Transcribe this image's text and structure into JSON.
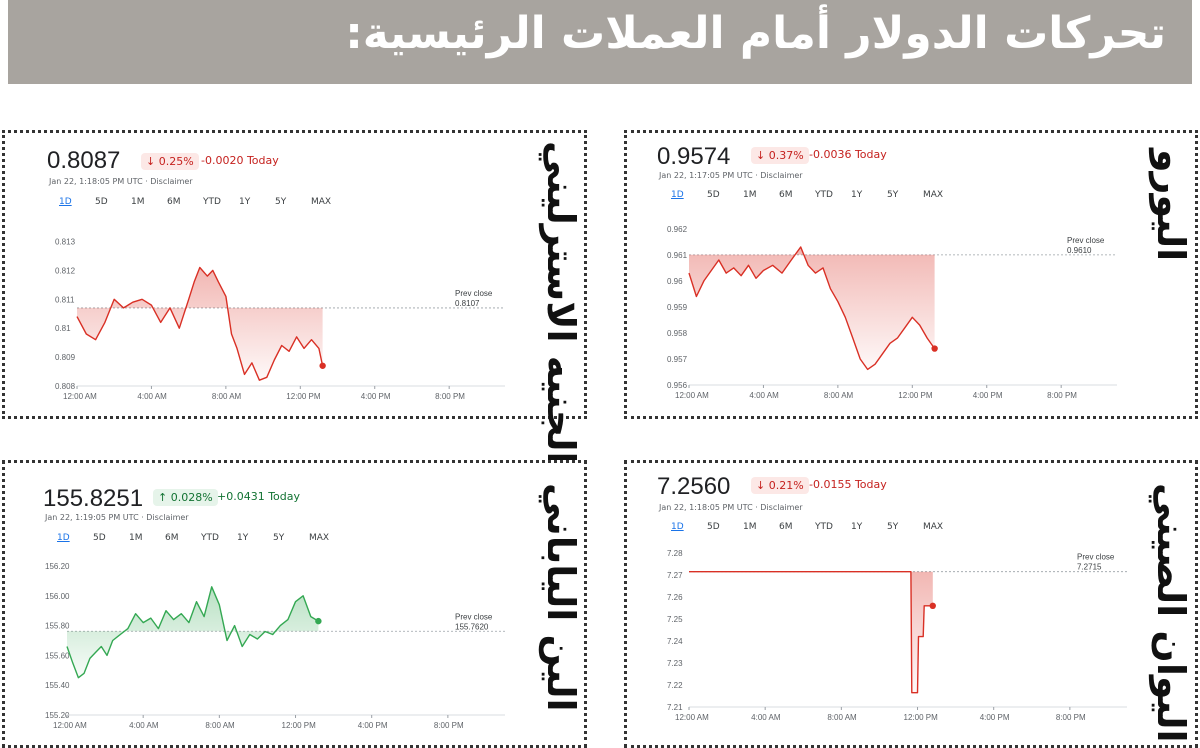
{
  "title": "تحركات الدولار أمام العملات الرئيسية:",
  "panels": [
    {
      "id": "gbp",
      "name": "الجنيه الاسترليني",
      "price": "0.8087",
      "change_pct": "↓ 0.25%",
      "change_abs": "-0.0020 Today",
      "direction": "down",
      "timestamp": "Jan 22, 1:18:05 PM UTC · Disclaimer",
      "ranges": [
        "1D",
        "5D",
        "1M",
        "6M",
        "YTD",
        "1Y",
        "5Y",
        "MAX"
      ],
      "active_range": "1D"
    },
    {
      "id": "eur",
      "name": "اليورو",
      "price": "0.9574",
      "change_pct": "↓ 0.37%",
      "change_abs": "-0.0036 Today",
      "direction": "down",
      "timestamp": "Jan 22, 1:17:05 PM UTC · Disclaimer",
      "ranges": [
        "1D",
        "5D",
        "1M",
        "6M",
        "YTD",
        "1Y",
        "5Y",
        "MAX"
      ],
      "active_range": "1D"
    },
    {
      "id": "jpy",
      "name": "الين الياباني",
      "price": "155.8251",
      "change_pct": "↑ 0.028%",
      "change_abs": "+0.0431 Today",
      "direction": "up",
      "timestamp": "Jan 22, 1:19:05 PM UTC · Disclaimer",
      "ranges": [
        "1D",
        "5D",
        "1M",
        "6M",
        "YTD",
        "1Y",
        "5Y",
        "MAX"
      ],
      "active_range": "1D"
    },
    {
      "id": "cny",
      "name": "اليوان الصيني",
      "price": "7.2560",
      "change_pct": "↓ 0.21%",
      "change_abs": "-0.0155 Today",
      "direction": "down",
      "timestamp": "Jan 22, 1:18:05 PM UTC · Disclaimer",
      "ranges": [
        "1D",
        "5D",
        "1M",
        "6M",
        "YTD",
        "1Y",
        "5Y",
        "MAX"
      ],
      "active_range": "1D"
    }
  ],
  "colors": {
    "down": "#d93025",
    "up": "#34a853",
    "baseline": "#9aa0a6",
    "axis": "#5f6368"
  },
  "chart_data": [
    {
      "type": "line",
      "series_id": "gbp",
      "x_unit": "hours since 12:00 AM UTC",
      "x_ticks": [
        "12:00 AM",
        "4:00 AM",
        "8:00 AM",
        "12:00 PM",
        "4:00 PM",
        "8:00 PM"
      ],
      "xlim": [
        0,
        23
      ],
      "y_ticks": [
        "0.813",
        "0.812",
        "0.811",
        "0.81",
        "0.809",
        "0.808"
      ],
      "ylim": [
        0.808,
        0.8135
      ],
      "prev_close_label": "Prev close",
      "prev_close_value": "0.8107",
      "prev_close": 0.8107,
      "x": [
        0,
        0.5,
        1,
        1.5,
        2,
        2.5,
        3,
        3.5,
        4,
        4.5,
        5,
        5.5,
        6,
        6.3,
        6.6,
        7,
        7.3,
        7.6,
        8,
        8.3,
        8.6,
        9,
        9.4,
        9.8,
        10.2,
        10.6,
        11,
        11.4,
        11.8,
        12.2,
        12.6,
        13,
        13.2
      ],
      "y": [
        0.8104,
        0.8098,
        0.8096,
        0.8102,
        0.811,
        0.8107,
        0.8109,
        0.811,
        0.8108,
        0.8102,
        0.8107,
        0.81,
        0.811,
        0.8116,
        0.8121,
        0.8118,
        0.812,
        0.8116,
        0.8111,
        0.8098,
        0.8093,
        0.8084,
        0.8088,
        0.8082,
        0.8083,
        0.8089,
        0.8094,
        0.8092,
        0.8097,
        0.8093,
        0.8096,
        0.8093,
        0.8087
      ]
    },
    {
      "type": "line",
      "series_id": "eur",
      "x_unit": "hours since 12:00 AM UTC",
      "x_ticks": [
        "12:00 AM",
        "4:00 AM",
        "8:00 AM",
        "12:00 PM",
        "4:00 PM",
        "8:00 PM"
      ],
      "xlim": [
        0,
        23
      ],
      "y_ticks": [
        "0.962",
        "0.961",
        "0.96",
        "0.959",
        "0.958",
        "0.957",
        "0.956"
      ],
      "ylim": [
        0.956,
        0.9623
      ],
      "prev_close_label": "Prev close",
      "prev_close_value": "0.9610",
      "prev_close": 0.961,
      "x": [
        0,
        0.4,
        0.8,
        1.2,
        1.6,
        2,
        2.4,
        2.8,
        3.2,
        3.6,
        4,
        4.5,
        5,
        5.5,
        6,
        6.4,
        6.8,
        7.2,
        7.6,
        8,
        8.4,
        8.8,
        9.2,
        9.6,
        10,
        10.4,
        10.8,
        11.2,
        11.6,
        12,
        12.4,
        12.8,
        13.2
      ],
      "y": [
        0.9603,
        0.9594,
        0.96,
        0.9604,
        0.9608,
        0.9603,
        0.9605,
        0.9602,
        0.9606,
        0.9601,
        0.9604,
        0.9606,
        0.9603,
        0.9608,
        0.9613,
        0.9606,
        0.9603,
        0.9605,
        0.9597,
        0.9592,
        0.9586,
        0.9578,
        0.957,
        0.9566,
        0.9568,
        0.9572,
        0.9576,
        0.9578,
        0.9582,
        0.9586,
        0.9583,
        0.9578,
        0.9574
      ]
    },
    {
      "type": "line",
      "series_id": "jpy",
      "x_unit": "hours since 12:00 AM UTC",
      "x_ticks": [
        "12:00 AM",
        "4:00 AM",
        "8:00 AM",
        "12:00 PM",
        "4:00 PM",
        "8:00 PM"
      ],
      "xlim": [
        0,
        23
      ],
      "y_ticks": [
        "156.20",
        "156.00",
        "155.80",
        "155.60",
        "155.40",
        "155.20"
      ],
      "ylim": [
        155.2,
        156.22
      ],
      "prev_close_label": "Prev close",
      "prev_close_value": "155.7620",
      "prev_close": 155.762,
      "x": [
        0,
        0.3,
        0.6,
        0.9,
        1.2,
        1.5,
        1.8,
        2.1,
        2.4,
        2.8,
        3.2,
        3.6,
        4,
        4.4,
        4.8,
        5.2,
        5.6,
        6,
        6.4,
        6.8,
        7.2,
        7.6,
        8,
        8.4,
        8.8,
        9.2,
        9.6,
        10,
        10.4,
        10.8,
        11.2,
        11.6,
        12,
        12.4,
        12.8,
        13.2
      ],
      "y": [
        155.66,
        155.55,
        155.45,
        155.48,
        155.58,
        155.62,
        155.66,
        155.6,
        155.7,
        155.74,
        155.78,
        155.88,
        155.82,
        155.85,
        155.78,
        155.9,
        155.84,
        155.88,
        155.82,
        155.96,
        155.86,
        156.06,
        155.94,
        155.7,
        155.8,
        155.66,
        155.74,
        155.71,
        155.76,
        155.74,
        155.8,
        155.84,
        155.96,
        156.0,
        155.86,
        155.83
      ]
    },
    {
      "type": "line",
      "series_id": "cny",
      "x_unit": "hours since 12:00 AM UTC",
      "x_ticks": [
        "12:00 AM",
        "4:00 AM",
        "8:00 AM",
        "12:00 PM",
        "4:00 PM",
        "8:00 PM"
      ],
      "xlim": [
        0,
        23
      ],
      "y_ticks": [
        "7.28",
        "7.27",
        "7.26",
        "7.25",
        "7.24",
        "7.23",
        "7.22",
        "7.21"
      ],
      "ylim": [
        7.21,
        7.28
      ],
      "prev_close_label": "Prev close",
      "prev_close_value": "7.2715",
      "prev_close": 7.2715,
      "x": [
        0,
        2,
        4,
        6,
        8,
        10,
        11.6,
        11.65,
        11.7,
        12.0,
        12.05,
        12.3,
        12.35,
        12.8
      ],
      "y": [
        7.2715,
        7.2715,
        7.2715,
        7.2715,
        7.2715,
        7.2715,
        7.2715,
        7.2715,
        7.2165,
        7.2165,
        7.242,
        7.242,
        7.256,
        7.256
      ]
    }
  ]
}
